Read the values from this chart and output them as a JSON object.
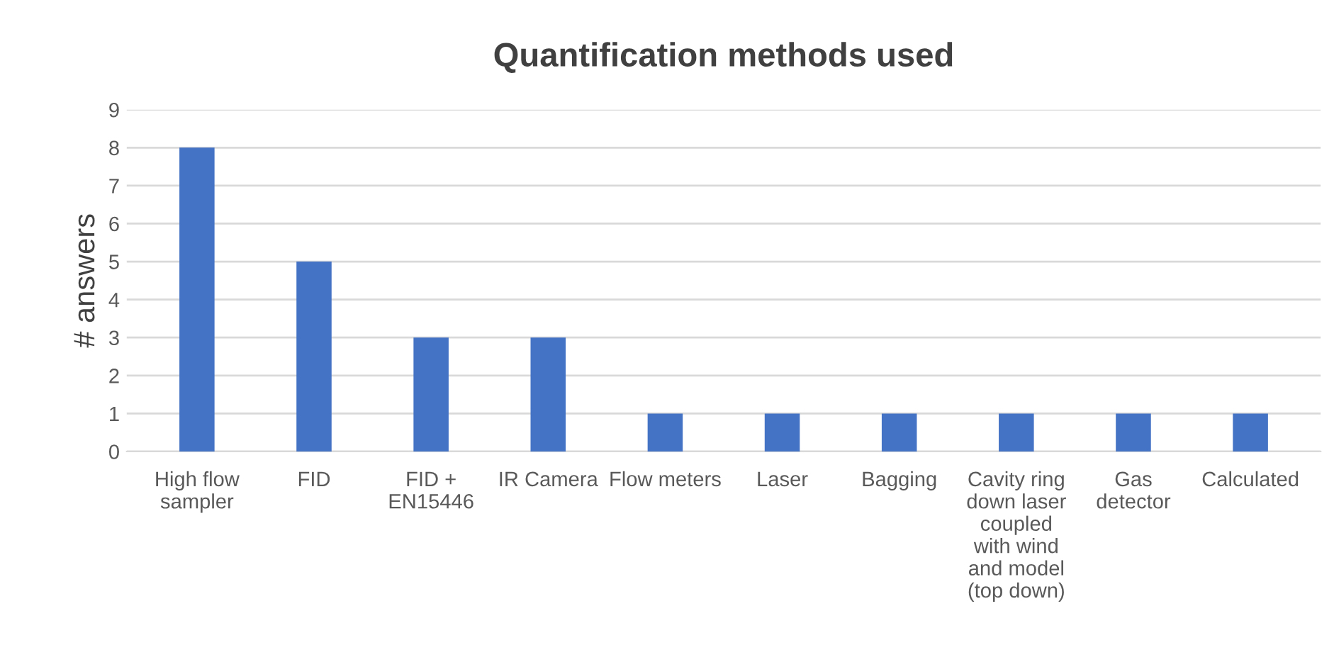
{
  "chart_data": {
    "type": "bar",
    "title": "Quantification methods used",
    "ylabel": "# answers",
    "categories": [
      "High flow\nsampler",
      "FID",
      "FID +\nEN15446",
      "IR Camera",
      "Flow meters",
      "Laser",
      "Bagging",
      "Cavity ring\ndown laser\ncoupled\nwith wind\nand model\n(top down)",
      "Gas\ndetector",
      "Calculated"
    ],
    "values": [
      8,
      5,
      3,
      3,
      1,
      1,
      1,
      1,
      1,
      1
    ],
    "color": "#4472c4",
    "ylim": [
      0,
      9
    ],
    "yticks": [
      0,
      1,
      2,
      3,
      4,
      5,
      6,
      7,
      8,
      9
    ],
    "grid": "y"
  }
}
